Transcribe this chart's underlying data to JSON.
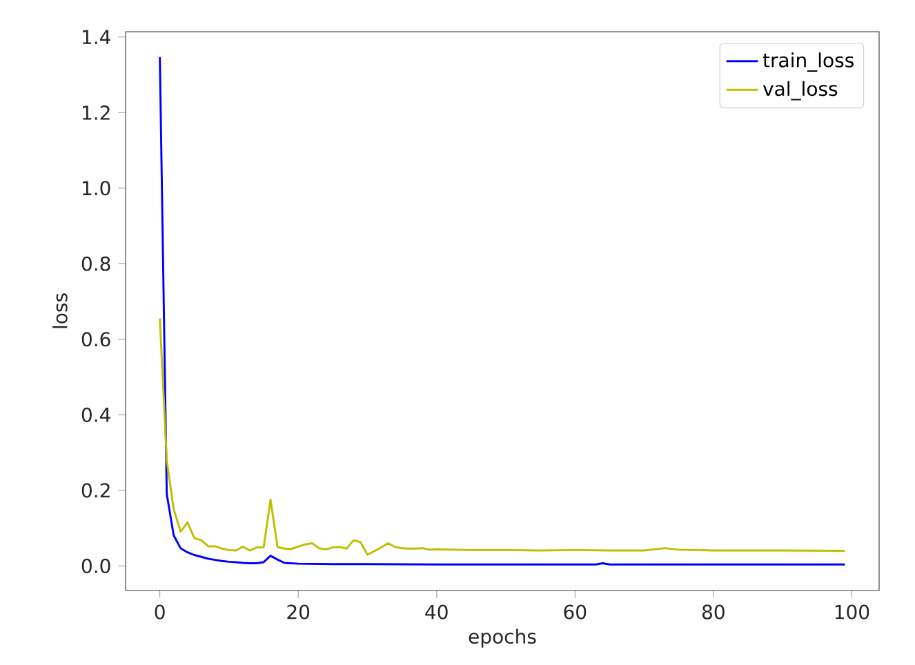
{
  "chart_data": {
    "type": "line",
    "xlabel": "epochs",
    "ylabel": "loss",
    "xlim": [
      -4.95,
      103.95
    ],
    "ylim": [
      -0.065,
      1.414
    ],
    "xticks": [
      0,
      20,
      40,
      60,
      80,
      100
    ],
    "yticks": [
      {
        "value": 0,
        "label": "0.0"
      },
      {
        "value": 0.2,
        "label": "0.2"
      },
      {
        "value": 0.4,
        "label": "0.4"
      },
      {
        "value": 0.6,
        "label": "0.6"
      },
      {
        "value": 0.8,
        "label": "0.8"
      },
      {
        "value": 1.0,
        "label": "1.0"
      },
      {
        "value": 1.2,
        "label": "1.2"
      },
      {
        "value": 1.4,
        "label": "1.4"
      }
    ],
    "legend": "top right",
    "grid": false,
    "marker": "none",
    "line_style": "solid",
    "series": [
      {
        "name": "train_loss",
        "color": "#0000ff",
        "x": [
          0,
          1,
          2,
          3,
          4,
          5,
          6,
          7,
          8,
          9,
          10,
          11,
          12,
          13,
          14,
          15,
          16,
          17,
          18,
          19,
          20,
          25,
          30,
          40,
          50,
          60,
          63,
          64,
          65,
          70,
          80,
          90,
          99
        ],
        "values": [
          1.347,
          0.19,
          0.081,
          0.047,
          0.036,
          0.029,
          0.024,
          0.019,
          0.016,
          0.013,
          0.011,
          0.01,
          0.008,
          0.007,
          0.007,
          0.01,
          0.027,
          0.017,
          0.008,
          0.007,
          0.006,
          0.005,
          0.005,
          0.004,
          0.004,
          0.004,
          0.004,
          0.007,
          0.004,
          0.004,
          0.004,
          0.004,
          0.004
        ]
      },
      {
        "name": "val_loss",
        "color": "#bfbf00",
        "x": [
          0,
          1,
          2,
          3,
          4,
          5,
          6,
          7,
          8,
          9,
          10,
          11,
          12,
          13,
          14,
          15,
          16,
          17,
          18,
          19,
          20,
          21,
          22,
          23,
          24,
          25,
          26,
          27,
          28,
          29,
          30,
          31,
          32,
          33,
          34,
          35,
          36,
          37,
          38,
          39,
          40,
          45,
          50,
          55,
          60,
          65,
          70,
          73,
          75,
          80,
          90,
          99
        ],
        "values": [
          0.655,
          0.28,
          0.15,
          0.091,
          0.115,
          0.073,
          0.068,
          0.052,
          0.052,
          0.046,
          0.042,
          0.041,
          0.051,
          0.041,
          0.049,
          0.049,
          0.175,
          0.05,
          0.046,
          0.045,
          0.051,
          0.057,
          0.06,
          0.047,
          0.044,
          0.049,
          0.05,
          0.046,
          0.068,
          0.063,
          0.03,
          0.039,
          0.049,
          0.06,
          0.05,
          0.047,
          0.046,
          0.046,
          0.047,
          0.043,
          0.044,
          0.042,
          0.042,
          0.041,
          0.042,
          0.041,
          0.041,
          0.047,
          0.043,
          0.041,
          0.041,
          0.04
        ]
      }
    ]
  }
}
